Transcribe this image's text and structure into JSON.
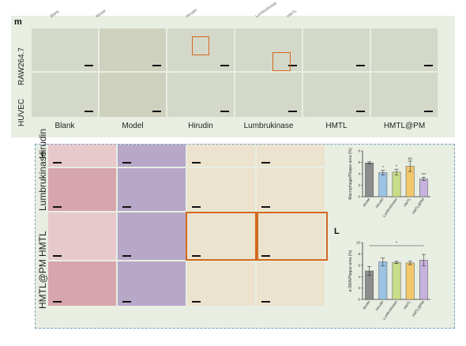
{
  "panel_top": {
    "letter": "m",
    "row_labels": [
      "RAW264.7",
      "HUVEC"
    ],
    "col_labels": [
      "Blank",
      "Model",
      "Hirudin",
      "Lumbrukinase",
      "HMTL",
      "HMTL@PM"
    ],
    "header_labels": [
      "Blank",
      "Model",
      "Hirudin",
      "Lumbrukinase",
      "HMTL",
      "HMTL@PM"
    ]
  },
  "panel_bottom": {
    "row_labels": [
      "Hirudin",
      "Lumbrukinase",
      "HMTL",
      "HMTL@PM"
    ],
    "chart_letter_l": "L"
  },
  "chart_data": [
    {
      "type": "bar",
      "title": "",
      "xlabel": "",
      "ylabel": "Macrophage/Plaque area (%)",
      "categories": [
        "Model",
        "Hirudin",
        "Lumbrokinase",
        "HMTL",
        "HMTL@PM"
      ],
      "values": [
        5.9,
        4.2,
        4.3,
        5.3,
        3.1
      ],
      "errors": [
        0.2,
        0.4,
        0.5,
        0.9,
        0.3
      ],
      "significance": [
        "",
        "*",
        "*",
        "ns",
        "***"
      ],
      "ylim": [
        0,
        8
      ],
      "yticks": [
        "0",
        "2",
        "4",
        "6",
        "8"
      ],
      "colors": [
        "#8c8c8c",
        "#9cc3e3",
        "#c9dd8a",
        "#f2c86a",
        "#c6b3dd"
      ]
    },
    {
      "type": "bar",
      "title": "",
      "xlabel": "",
      "ylabel": "α-SMA/Plaque area (%)",
      "categories": [
        "Model",
        "Hirudin",
        "Lumbrokinase",
        "HMTL",
        "HMTL@PM"
      ],
      "values": [
        5.0,
        6.6,
        6.5,
        6.4,
        6.9
      ],
      "errors": [
        0.8,
        0.7,
        0.2,
        0.3,
        1.0
      ],
      "significance": [
        "",
        "",
        "",
        "",
        ""
      ],
      "top_marker": "*",
      "ylim": [
        0,
        10
      ],
      "yticks": [
        "0",
        "2",
        "4",
        "6",
        "8",
        "10"
      ],
      "colors": [
        "#8c8c8c",
        "#9cc3e3",
        "#c9dd8a",
        "#f2c86a",
        "#c6b3dd"
      ]
    }
  ]
}
